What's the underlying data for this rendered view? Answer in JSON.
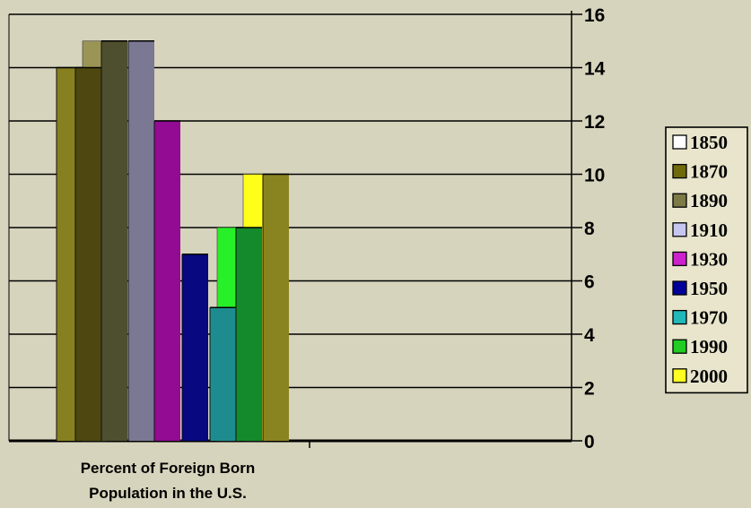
{
  "colors": {
    "background": "#d7d4bd",
    "gridline": "#000000"
  },
  "chart_data": {
    "type": "bar",
    "categories": [
      "Percent of Foreign Born Population in the U.S."
    ],
    "category_label_lines": [
      "Percent of Foreign Born",
      "Population in the U.S."
    ],
    "y_axis_side": "right",
    "ylim": [
      0,
      16
    ],
    "yticks": [
      "0",
      "2",
      "4",
      "6",
      "8",
      "10",
      "12",
      "14",
      "16"
    ],
    "grid": true,
    "legend_position": "right",
    "legend": [
      {
        "label": "1850",
        "color": "#ffffff"
      },
      {
        "label": "1870",
        "color": "#6f6a0c"
      },
      {
        "label": "1890",
        "color": "#7c7a45"
      },
      {
        "label": "1910",
        "color": "#c6c6f0"
      },
      {
        "label": "1930",
        "color": "#cc22cc"
      },
      {
        "label": "1950",
        "color": "#000099"
      },
      {
        "label": "1970",
        "color": "#22b8b8"
      },
      {
        "label": "1990",
        "color": "#22cc22"
      },
      {
        "label": "2000",
        "color": "#ffff22"
      }
    ],
    "series": [
      {
        "value": 14,
        "color": "#868020"
      },
      {
        "value": 14,
        "color": "#4e4810"
      },
      {
        "value": 15,
        "color": "#4e4f2e"
      },
      {
        "value": 15,
        "color": "#7b7894"
      },
      {
        "value": 12,
        "color": "#930a93"
      },
      {
        "value": 7,
        "color": "#080880"
      },
      {
        "value": 5,
        "color": "#1e8c8f"
      },
      {
        "value": 8,
        "color": "#148a2c"
      },
      {
        "value": 10,
        "color": "#8a8420"
      }
    ],
    "back_bars": [
      {
        "value": 15,
        "color": "#9a9555"
      },
      {
        "value": 8,
        "color": "#28f028"
      },
      {
        "value": 10,
        "color": "#ffff1a"
      }
    ]
  }
}
